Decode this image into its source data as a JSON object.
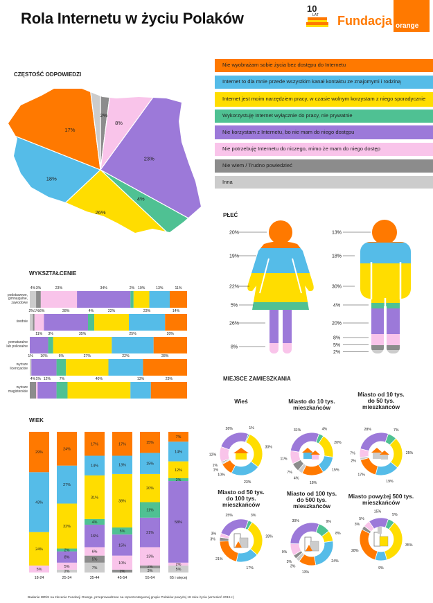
{
  "header": {
    "title": "Rola Internetu w życiu Polaków",
    "logo_years": "10",
    "logo_lat": "LAT",
    "logo_text": "Fundacja",
    "logo_brand": "orange"
  },
  "colors": {
    "o": "#ff7900",
    "b": "#55bce8",
    "y": "#ffdd00",
    "g": "#4fc193",
    "p": "#9c79d9",
    "k": "#f9c4ea",
    "d": "#8c8c8c",
    "l": "#cccccc"
  },
  "legend": [
    {
      "key": "o",
      "label": "Nie wyobrażam sobie życia bez dostępu do Internetu"
    },
    {
      "key": "b",
      "label": "Internet to dla mnie przede wszystkim kanał kontaktu ze znajomymi i rodziną"
    },
    {
      "key": "y",
      "label": "Internet jest moim narzędziem pracy, w czasie wolnym korzystam z niego sporadycznie"
    },
    {
      "key": "g",
      "label": "Wykorzystuję Internet wyłącznie do pracy, nie prywatnie"
    },
    {
      "key": "p",
      "label": "Nie korzystam z Internetu, bo nie mam do niego dostępu"
    },
    {
      "key": "k",
      "label": "Nie potrzebuję Internetu do niczego, mimo że mam do niego dostęp"
    },
    {
      "key": "d",
      "label": "Nie wiem / Trudno powiedzieć"
    },
    {
      "key": "l",
      "label": "Inna"
    }
  ],
  "footer": "Badanie IBRiS na zlecenie Fundacji Orange, przeprowadzone na reprezentatywnej grupie Polaków powyżej 18 roku życia (wrzesień 2015 r.)",
  "chart_data": [
    {
      "type": "pie",
      "title": "CZĘSTOŚĆ ODPOWIEDZI",
      "slices": [
        {
          "key": "d",
          "value": 2,
          "label": "2%"
        },
        {
          "key": "k",
          "value": 8,
          "label": "8%"
        },
        {
          "key": "p",
          "value": 23,
          "label": "23%"
        },
        {
          "key": "g",
          "value": 4,
          "label": "4%"
        },
        {
          "key": "y",
          "value": 26,
          "label": "26%"
        },
        {
          "key": "b",
          "value": 18,
          "label": "18%"
        },
        {
          "key": "o",
          "value": 17,
          "label": "17%"
        },
        {
          "key": "l",
          "value": 2,
          "label": ""
        }
      ]
    },
    {
      "type": "bar",
      "orientation": "horizontal-stacked",
      "title": "WYKSZTAŁCENIE",
      "rows": [
        {
          "label": "podstawowe,\ngimnazjalne,\nzawodowe",
          "segments": [
            {
              "key": "l",
              "value": 4
            },
            {
              "key": "d",
              "value": 3
            },
            {
              "key": "k",
              "value": 23
            },
            {
              "key": "p",
              "value": 34
            },
            {
              "key": "g",
              "value": 2
            },
            {
              "key": "y",
              "value": 10
            },
            {
              "key": "b",
              "value": 13
            },
            {
              "key": "o",
              "value": 11
            }
          ]
        },
        {
          "label": "średnie",
          "segments": [
            {
              "key": "l",
              "value": 2
            },
            {
              "key": "d",
              "value": 1
            },
            {
              "key": "k",
              "value": 6
            },
            {
              "key": "p",
              "value": 28
            },
            {
              "key": "g",
              "value": 4
            },
            {
              "key": "y",
              "value": 22
            },
            {
              "key": "b",
              "value": 23
            },
            {
              "key": "o",
              "value": 14
            }
          ]
        },
        {
          "label": "pomaturalne\nlub policealne",
          "segments": [
            {
              "key": "p",
              "value": 11
            },
            {
              "key": "g",
              "value": 3
            },
            {
              "key": "y",
              "value": 35
            },
            {
              "key": "b",
              "value": 25
            },
            {
              "key": "o",
              "value": 20
            }
          ]
        },
        {
          "label": "wyższe\nlicencjackie",
          "segments": [
            {
              "key": "l",
              "value": 1
            },
            {
              "key": "p",
              "value": 16
            },
            {
              "key": "g",
              "value": 6
            },
            {
              "key": "y",
              "value": 27
            },
            {
              "key": "b",
              "value": 22
            },
            {
              "key": "o",
              "value": 28
            }
          ]
        },
        {
          "label": "wyższe\nmagisterskie",
          "segments": [
            {
              "key": "d",
              "value": 4
            },
            {
              "key": "k",
              "value": 1
            },
            {
              "key": "p",
              "value": 12
            },
            {
              "key": "g",
              "value": 7
            },
            {
              "key": "y",
              "value": 40
            },
            {
              "key": "b",
              "value": 13
            },
            {
              "key": "o",
              "value": 23
            }
          ]
        }
      ]
    },
    {
      "type": "bar",
      "orientation": "vertical-stacked",
      "title": "WIEK",
      "columns": [
        {
          "label": "18-24",
          "segments": [
            {
              "key": "k",
              "value": 5
            },
            {
              "key": "y",
              "value": 24
            },
            {
              "key": "b",
              "value": 43
            },
            {
              "key": "o",
              "value": 29
            }
          ]
        },
        {
          "label": "25-34",
          "segments": [
            {
              "key": "l",
              "value": 2
            },
            {
              "key": "k",
              "value": 5
            },
            {
              "key": "p",
              "value": 8
            },
            {
              "key": "g",
              "value": 2
            },
            {
              "key": "y",
              "value": 32
            },
            {
              "key": "b",
              "value": 27
            },
            {
              "key": "o",
              "value": 24
            }
          ]
        },
        {
          "label": "35-44",
          "segments": [
            {
              "key": "l",
              "value": 7
            },
            {
              "key": "d",
              "value": 5
            },
            {
              "key": "k",
              "value": 6
            },
            {
              "key": "p",
              "value": 16
            },
            {
              "key": "g",
              "value": 4
            },
            {
              "key": "y",
              "value": 31
            },
            {
              "key": "b",
              "value": 14
            },
            {
              "key": "o",
              "value": 17
            }
          ]
        },
        {
          "label": "45-54",
          "segments": [
            {
              "key": "d",
              "value": 2
            },
            {
              "key": "k",
              "value": 10
            },
            {
              "key": "p",
              "value": 15
            },
            {
              "key": "g",
              "value": 5
            },
            {
              "key": "y",
              "value": 38
            },
            {
              "key": "b",
              "value": 13
            },
            {
              "key": "o",
              "value": 17
            }
          ]
        },
        {
          "label": "55-64",
          "segments": [
            {
              "key": "l",
              "value": 3
            },
            {
              "key": "d",
              "value": 2
            },
            {
              "key": "k",
              "value": 13
            },
            {
              "key": "p",
              "value": 21
            },
            {
              "key": "g",
              "value": 11
            },
            {
              "key": "y",
              "value": 20
            },
            {
              "key": "b",
              "value": 15
            },
            {
              "key": "o",
              "value": 15
            }
          ]
        },
        {
          "label": "65 i więcej",
          "segments": [
            {
              "key": "l",
              "value": 5
            },
            {
              "key": "k",
              "value": 2
            },
            {
              "key": "p",
              "value": 58
            },
            {
              "key": "g",
              "value": 2
            },
            {
              "key": "y",
              "value": 12
            },
            {
              "key": "b",
              "value": 14
            },
            {
              "key": "o",
              "value": 7
            }
          ]
        }
      ]
    },
    {
      "type": "bar",
      "orientation": "figure-stacked",
      "title": "PŁEĆ",
      "figures": [
        {
          "label": "kobiety",
          "segments": [
            {
              "key": "o",
              "value": 20
            },
            {
              "key": "b",
              "value": 19
            },
            {
              "key": "y",
              "value": 22
            },
            {
              "key": "g",
              "value": 5
            },
            {
              "key": "p",
              "value": 26
            },
            {
              "key": "k",
              "value": 8
            }
          ]
        },
        {
          "label": "mężczyźni",
          "segments": [
            {
              "key": "o",
              "value": 13
            },
            {
              "key": "b",
              "value": 18
            },
            {
              "key": "y",
              "value": 30
            },
            {
              "key": "g",
              "value": 4
            },
            {
              "key": "p",
              "value": 20
            },
            {
              "key": "k",
              "value": 8
            },
            {
              "key": "d",
              "value": 5
            },
            {
              "key": "l",
              "value": 2
            }
          ]
        }
      ]
    },
    {
      "type": "pie",
      "variant": "donut",
      "title": "MIEJSCE ZAMIESZKANIA",
      "donuts": [
        {
          "title": "Wieś",
          "slices": [
            {
              "key": "p",
              "value": 26
            },
            {
              "key": "g",
              "value": 1
            },
            {
              "key": "y",
              "value": 30
            },
            {
              "key": "b",
              "value": 23
            },
            {
              "key": "o",
              "value": 10
            },
            {
              "key": "l",
              "value": 1
            },
            {
              "key": "d",
              "value": 1
            },
            {
              "key": "k",
              "value": 12
            }
          ]
        },
        {
          "title": "Miasto do 10 tys.\nmieszkańców",
          "slices": [
            {
              "key": "p",
              "value": 31
            },
            {
              "key": "g",
              "value": 4
            },
            {
              "key": "y",
              "value": 20
            },
            {
              "key": "b",
              "value": 15
            },
            {
              "key": "o",
              "value": 18
            },
            {
              "key": "l",
              "value": 4
            },
            {
              "key": "d",
              "value": 7
            },
            {
              "key": "k",
              "value": 11
            }
          ]
        },
        {
          "title": "Miasto od 10 tys.\ndo 50 tys.\nmieszkańców",
          "slices": [
            {
              "key": "p",
              "value": 28
            },
            {
              "key": "g",
              "value": 7
            },
            {
              "key": "y",
              "value": 25
            },
            {
              "key": "b",
              "value": 19
            },
            {
              "key": "o",
              "value": 17
            },
            {
              "key": "l",
              "value": 2
            },
            {
              "key": "k",
              "value": 7
            }
          ]
        },
        {
          "title": "Miasto od 50 tys.\ndo 100 tys.\nmieszkańców",
          "slices": [
            {
              "key": "p",
              "value": 25
            },
            {
              "key": "g",
              "value": 3
            },
            {
              "key": "y",
              "value": 28
            },
            {
              "key": "b",
              "value": 17
            },
            {
              "key": "o",
              "value": 21
            },
            {
              "key": "d",
              "value": 3
            },
            {
              "key": "k",
              "value": 3
            }
          ]
        },
        {
          "title": "Miasto od 100 tys.\ndo 500 tys.\nmieszkańców",
          "slices": [
            {
              "key": "p",
              "value": 30
            },
            {
              "key": "g",
              "value": 9
            },
            {
              "key": "y",
              "value": 8
            },
            {
              "key": "b",
              "value": 24
            },
            {
              "key": "o",
              "value": 13
            },
            {
              "key": "l",
              "value": 3
            },
            {
              "key": "d",
              "value": 3
            },
            {
              "key": "k",
              "value": 9
            }
          ]
        },
        {
          "title": "Miasto powyżej 500 tys.\nmieszkańców",
          "slices": [
            {
              "key": "p",
              "value": 15
            },
            {
              "key": "g",
              "value": 5
            },
            {
              "key": "y",
              "value": 35
            },
            {
              "key": "b",
              "value": 9
            },
            {
              "key": "o",
              "value": 28
            },
            {
              "key": "d",
              "value": 3
            },
            {
              "key": "k",
              "value": 5
            }
          ]
        }
      ]
    }
  ]
}
